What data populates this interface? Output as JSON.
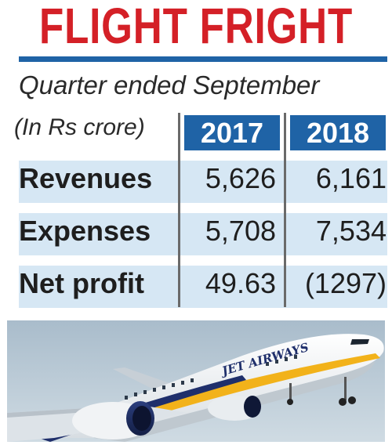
{
  "header": {
    "title": "FLIGHT FRIGHT"
  },
  "chart_data": {
    "type": "table",
    "subtitle": "Quarter ended September",
    "unit_label": "(In Rs crore)",
    "columns": [
      "2017",
      "2018"
    ],
    "rows": [
      {
        "label": "Revenues",
        "values": [
          "5,626",
          "6,161"
        ]
      },
      {
        "label": "Expenses",
        "values": [
          "5,708",
          "7,534"
        ]
      },
      {
        "label": "Net profit",
        "values": [
          "49.63",
          "(1297)"
        ]
      }
    ]
  },
  "photo": {
    "livery_text": "JET AIRWAYS"
  },
  "colors": {
    "title_red": "#d42027",
    "accent_blue": "#1f63a6",
    "row_tint": "#d6e7f4",
    "livery_navy": "#1f2f6b",
    "livery_gold": "#f2b21a",
    "sky": "#b9c9d6"
  }
}
